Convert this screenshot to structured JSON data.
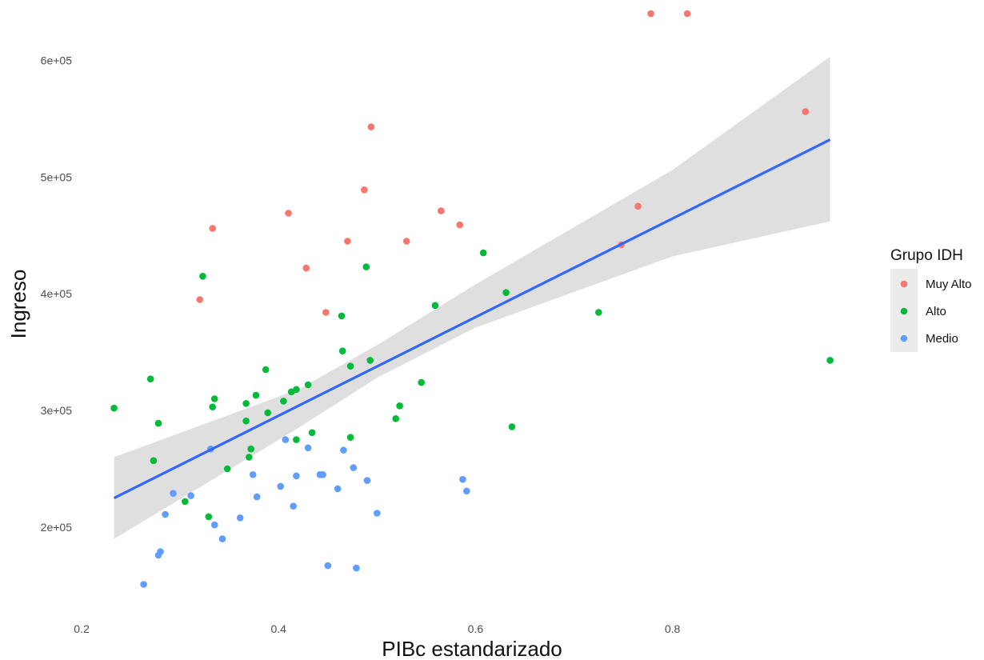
{
  "chart_data": {
    "type": "scatter",
    "xlabel": "PIBc estandarizado",
    "ylabel": "Ingreso",
    "xlim": [
      0.2,
      1.0
    ],
    "ylim": [
      140000,
      650000
    ],
    "x_ticks": [
      {
        "value": 0.2,
        "label": "0.2"
      },
      {
        "value": 0.4,
        "label": "0.4"
      },
      {
        "value": 0.6,
        "label": "0.6"
      },
      {
        "value": 0.8,
        "label": "0.8"
      }
    ],
    "y_ticks": [
      {
        "value": 200000,
        "label": "2e+05"
      },
      {
        "value": 300000,
        "label": "3e+05"
      },
      {
        "value": 400000,
        "label": "4e+05"
      },
      {
        "value": 500000,
        "label": "5e+05"
      },
      {
        "value": 600000,
        "label": "6e+05"
      }
    ],
    "grid": false,
    "legend": {
      "title": "Grupo IDH",
      "placement": "right",
      "entries": [
        "Muy Alto",
        "Alto",
        "Medio"
      ]
    },
    "series": [
      {
        "name": "Muy Alto",
        "color": "#f8766d",
        "points": [
          [
            0.32,
            395000
          ],
          [
            0.333,
            456000
          ],
          [
            0.41,
            469000
          ],
          [
            0.428,
            422000
          ],
          [
            0.448,
            384000
          ],
          [
            0.47,
            445000
          ],
          [
            0.487,
            489000
          ],
          [
            0.494,
            543000
          ],
          [
            0.53,
            445000
          ],
          [
            0.565,
            471000
          ],
          [
            0.584,
            459000
          ],
          [
            0.748,
            442000
          ],
          [
            0.765,
            475000
          ],
          [
            0.935,
            556000
          ],
          [
            0.778,
            640000
          ],
          [
            0.815,
            640000
          ]
        ]
      },
      {
        "name": "Alto",
        "color": "#00ba38",
        "points": [
          [
            0.233,
            302000
          ],
          [
            0.27,
            327000
          ],
          [
            0.273,
            257000
          ],
          [
            0.278,
            289000
          ],
          [
            0.305,
            222000
          ],
          [
            0.323,
            415000
          ],
          [
            0.329,
            209000
          ],
          [
            0.333,
            303000
          ],
          [
            0.335,
            310000
          ],
          [
            0.348,
            250000
          ],
          [
            0.367,
            306000
          ],
          [
            0.367,
            291000
          ],
          [
            0.37,
            260000
          ],
          [
            0.372,
            267000
          ],
          [
            0.377,
            313000
          ],
          [
            0.387,
            335000
          ],
          [
            0.389,
            298000
          ],
          [
            0.405,
            308000
          ],
          [
            0.413,
            316000
          ],
          [
            0.418,
            318000
          ],
          [
            0.418,
            275000
          ],
          [
            0.43,
            322000
          ],
          [
            0.434,
            281000
          ],
          [
            0.464,
            381000
          ],
          [
            0.465,
            351000
          ],
          [
            0.473,
            338000
          ],
          [
            0.473,
            277000
          ],
          [
            0.489,
            423000
          ],
          [
            0.493,
            343000
          ],
          [
            0.519,
            293000
          ],
          [
            0.523,
            304000
          ],
          [
            0.545,
            324000
          ],
          [
            0.559,
            390000
          ],
          [
            0.608,
            435000
          ],
          [
            0.631,
            401000
          ],
          [
            0.637,
            286000
          ],
          [
            0.725,
            384000
          ],
          [
            0.96,
            343000
          ]
        ]
      },
      {
        "name": "Medio",
        "color": "#619cff",
        "points": [
          [
            0.263,
            151000
          ],
          [
            0.278,
            176000
          ],
          [
            0.28,
            179000
          ],
          [
            0.285,
            211000
          ],
          [
            0.293,
            229000
          ],
          [
            0.311,
            227000
          ],
          [
            0.331,
            267000
          ],
          [
            0.335,
            202000
          ],
          [
            0.343,
            190000
          ],
          [
            0.361,
            208000
          ],
          [
            0.374,
            245000
          ],
          [
            0.378,
            226000
          ],
          [
            0.402,
            235000
          ],
          [
            0.407,
            275000
          ],
          [
            0.415,
            218000
          ],
          [
            0.418,
            244000
          ],
          [
            0.43,
            268000
          ],
          [
            0.442,
            245000
          ],
          [
            0.445,
            245000
          ],
          [
            0.45,
            167000
          ],
          [
            0.46,
            233000
          ],
          [
            0.466,
            266000
          ],
          [
            0.476,
            251000
          ],
          [
            0.479,
            165000
          ],
          [
            0.49,
            240000
          ],
          [
            0.5,
            212000
          ],
          [
            0.587,
            241000
          ],
          [
            0.591,
            231000
          ]
        ]
      }
    ],
    "fit": {
      "method": "linear",
      "color": "#3366ff",
      "ci_color": "#d9d9d9",
      "x_range": [
        0.233,
        0.96
      ],
      "line": [
        [
          0.233,
          225000
        ],
        [
          0.96,
          532000
        ]
      ],
      "band_upper": [
        [
          0.233,
          260000
        ],
        [
          0.42,
          318000
        ],
        [
          0.5,
          356000
        ],
        [
          0.6,
          408000
        ],
        [
          0.8,
          506000
        ],
        [
          0.96,
          603000
        ]
      ],
      "band_lower": [
        [
          0.233,
          190000
        ],
        [
          0.42,
          285000
        ],
        [
          0.5,
          328000
        ],
        [
          0.6,
          371000
        ],
        [
          0.8,
          432000
        ],
        [
          0.96,
          462000
        ]
      ]
    }
  }
}
